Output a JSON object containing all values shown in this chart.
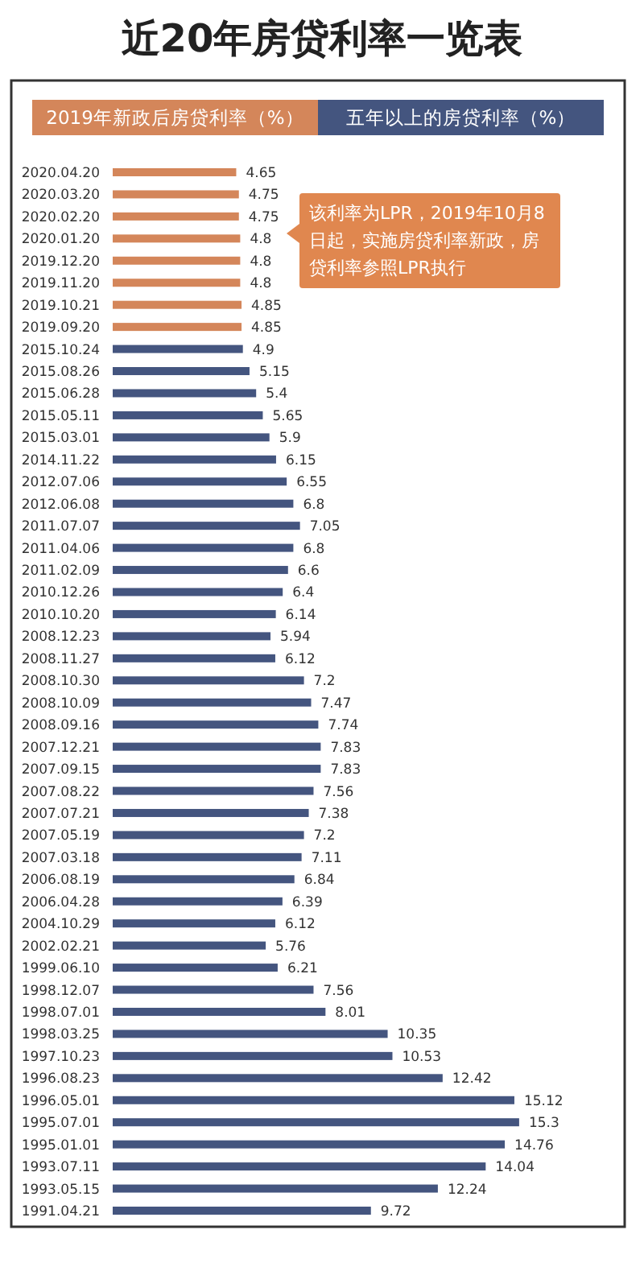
{
  "chart_data": {
    "type": "bar",
    "orientation": "horizontal",
    "title": "近20年房贷利率一览表",
    "categories": [
      "2020.04.20",
      "2020.03.20",
      "2020.02.20",
      "2020.01.20",
      "2019.12.20",
      "2019.11.20",
      "2019.10.21",
      "2019.09.20",
      "2015.10.24",
      "2015.08.26",
      "2015.06.28",
      "2015.05.11",
      "2015.03.01",
      "2014.11.22",
      "2012.07.06",
      "2012.06.08",
      "2011.07.07",
      "2011.04.06",
      "2011.02.09",
      "2010.12.26",
      "2010.10.20",
      "2008.12.23",
      "2008.11.27",
      "2008.10.30",
      "2008.10.09",
      "2008.09.16",
      "2007.12.21",
      "2007.09.15",
      "2007.08.22",
      "2007.07.21",
      "2007.05.19",
      "2007.03.18",
      "2006.08.19",
      "2006.04.28",
      "2004.10.29",
      "2002.02.21",
      "1999.06.10",
      "1998.12.07",
      "1998.07.01",
      "1998.03.25",
      "1997.10.23",
      "1996.08.23",
      "1996.05.01",
      "1995.07.01",
      "1995.01.01",
      "1993.07.11",
      "1993.05.15",
      "1991.04.21"
    ],
    "series": [
      {
        "name": "2019年新政后房贷利率（%）",
        "color": "#d4865a",
        "values": [
          4.65,
          4.75,
          4.75,
          4.8,
          4.8,
          4.8,
          4.85,
          4.85,
          null,
          null,
          null,
          null,
          null,
          null,
          null,
          null,
          null,
          null,
          null,
          null,
          null,
          null,
          null,
          null,
          null,
          null,
          null,
          null,
          null,
          null,
          null,
          null,
          null,
          null,
          null,
          null,
          null,
          null,
          null,
          null,
          null,
          null,
          null,
          null,
          null,
          null,
          null,
          null
        ]
      },
      {
        "name": "五年以上的房贷利率（%）",
        "color": "#44557f",
        "values": [
          null,
          null,
          null,
          null,
          null,
          null,
          null,
          null,
          4.9,
          5.15,
          5.4,
          5.65,
          5.9,
          6.15,
          6.55,
          6.8,
          7.05,
          6.8,
          6.6,
          6.4,
          6.14,
          5.94,
          6.12,
          7.2,
          7.47,
          7.74,
          7.83,
          7.83,
          7.56,
          7.38,
          7.2,
          7.11,
          6.84,
          6.39,
          6.12,
          5.76,
          6.21,
          7.56,
          8.01,
          10.35,
          10.53,
          12.42,
          15.12,
          15.3,
          14.76,
          14.04,
          12.24,
          9.72
        ]
      }
    ],
    "data_labels": true,
    "legend": "top",
    "annotations": [
      "该利率为LPR，2019年10月8日起，实施房贷利率新政，房贷利率参照LPR执行"
    ]
  }
}
